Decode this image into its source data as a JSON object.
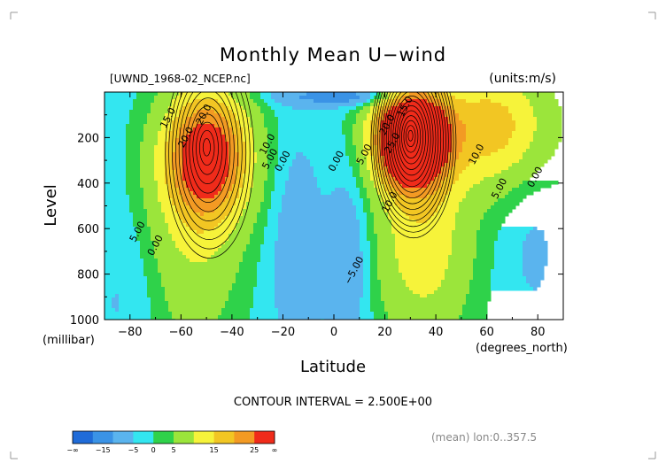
{
  "chart_data": {
    "type": "contour",
    "title": "Monthly Mean U−wind",
    "source_file": "[UWND_1968-02_NCEP.nc]",
    "units": "(units:m/s)",
    "ylabel": "Level",
    "ylabel_units": "(millibar)",
    "xlabel": "Latitude",
    "xlabel_units": "(degrees_north)",
    "xlim": [
      -90,
      90
    ],
    "ylim": [
      1000,
      0
    ],
    "y_reversed": true,
    "x_ticks": [
      {
        "value": -80,
        "label": "−80"
      },
      {
        "value": -60,
        "label": "−60"
      },
      {
        "value": -40,
        "label": "−40"
      },
      {
        "value": -20,
        "label": "−20"
      },
      {
        "value": 0,
        "label": "0"
      },
      {
        "value": 20,
        "label": "20"
      },
      {
        "value": 40,
        "label": "40"
      },
      {
        "value": 60,
        "label": "60"
      },
      {
        "value": 80,
        "label": "80"
      }
    ],
    "y_ticks": [
      {
        "value": 200,
        "label": "200"
      },
      {
        "value": 400,
        "label": "400"
      },
      {
        "value": 600,
        "label": "600"
      },
      {
        "value": 800,
        "label": "800"
      },
      {
        "value": 1000,
        "label": "1000"
      }
    ],
    "contour_interval_text": "CONTOUR INTERVAL = 2.500E+00",
    "footnote": "(mean) lon:0..357.5",
    "contour_labels": [
      {
        "x": -64,
        "y": 120,
        "text": "15.0"
      },
      {
        "x": -50,
        "y": 105,
        "text": "20.0"
      },
      {
        "x": -57,
        "y": 205,
        "text": "20.0"
      },
      {
        "x": -25,
        "y": 235,
        "text": "10.0"
      },
      {
        "x": -24,
        "y": 300,
        "text": "5.00"
      },
      {
        "x": -19,
        "y": 310,
        "text": "0.00"
      },
      {
        "x": -76,
        "y": 620,
        "text": "5.00"
      },
      {
        "x": -69,
        "y": 680,
        "text": "0.00"
      },
      {
        "x": 2,
        "y": 310,
        "text": "0.00"
      },
      {
        "x": 9,
        "y": 790,
        "text": "−5.00"
      },
      {
        "x": 13,
        "y": 280,
        "text": "5.00"
      },
      {
        "x": 29,
        "y": 70,
        "text": "15.0"
      },
      {
        "x": 22,
        "y": 150,
        "text": "20.0"
      },
      {
        "x": 24,
        "y": 230,
        "text": "25.0"
      },
      {
        "x": 23,
        "y": 490,
        "text": "10.0"
      },
      {
        "x": 57,
        "y": 280,
        "text": "10.0"
      },
      {
        "x": 66,
        "y": 430,
        "text": "5.00"
      },
      {
        "x": 80,
        "y": 380,
        "text": "0.00"
      }
    ],
    "jets": [
      {
        "lat": -50,
        "level": 260,
        "max": 27.5,
        "hemisphere": "south"
      },
      {
        "lat": 30,
        "level": 200,
        "max": 42.5,
        "hemisphere": "north"
      }
    ],
    "colorbar": {
      "colors": [
        "#1f6bd8",
        "#3a93e6",
        "#5ab4ee",
        "#33e6f0",
        "#2fd24a",
        "#9be53b",
        "#f6f33a",
        "#f2c623",
        "#f39a23",
        "#f02b1a"
      ],
      "tick_labels": [
        "−∞",
        "−15",
        "−5",
        "0",
        "5",
        "15",
        "25",
        "∞"
      ]
    }
  }
}
